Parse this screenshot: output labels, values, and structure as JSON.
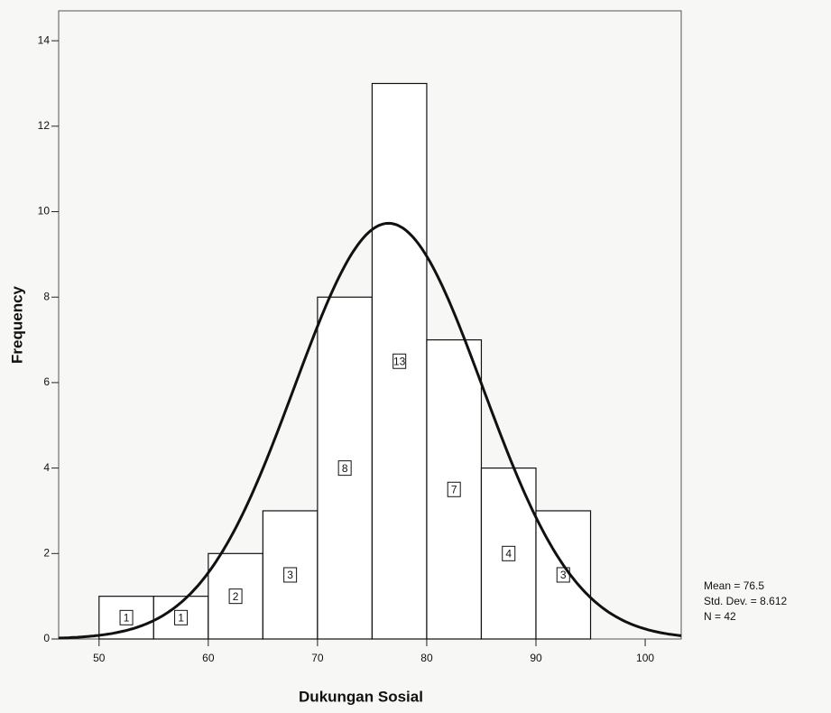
{
  "chart_data": {
    "type": "histogram",
    "x_label": "Dukungan Sosial",
    "y_label": "Frequency",
    "bins": [
      50,
      55,
      60,
      65,
      70,
      75,
      80,
      85,
      90,
      95
    ],
    "values": [
      1,
      1,
      2,
      3,
      8,
      13,
      7,
      4,
      3
    ],
    "xlim": [
      46.3,
      103.3
    ],
    "ylim": [
      0,
      14.7
    ],
    "xticks": [
      50,
      60,
      70,
      80,
      90,
      100
    ],
    "yticks": [
      0,
      2,
      4,
      6,
      8,
      10,
      12,
      14
    ],
    "color": "#ffffff",
    "curve_color": "#111111",
    "stats": {
      "mean": {
        "value": 76.5,
        "label": "Mean = 76.5"
      },
      "std_dev": {
        "value": 8.612,
        "label": "Std. Dev. = 8.612"
      },
      "n": {
        "value": 42,
        "label": "N = 42"
      }
    }
  }
}
